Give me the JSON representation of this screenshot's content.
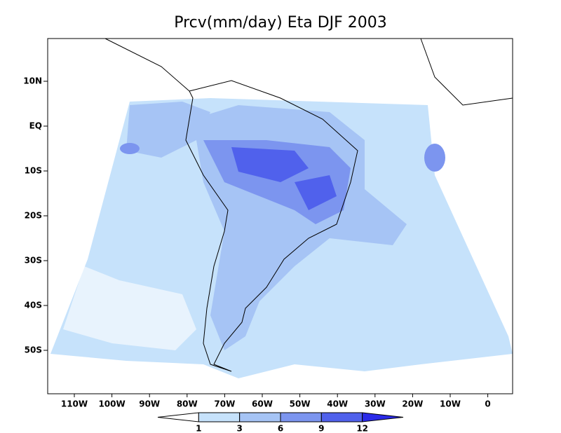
{
  "title": "Prcv(mm/day) Eta DJF 2003",
  "lat_labels": [
    "10N",
    "EQ",
    "10S",
    "20S",
    "30S",
    "40S",
    "50S"
  ],
  "lon_labels": [
    "110W",
    "100W",
    "90W",
    "80W",
    "70W",
    "60W",
    "50W",
    "40W",
    "30W",
    "20W",
    "10W",
    "0"
  ],
  "colorbar": {
    "levels": [
      1,
      3,
      6,
      9,
      12
    ],
    "colors": [
      "#ffffff",
      "#c6e2fb",
      "#a6c4f5",
      "#7c95ef",
      "#5061ec",
      "#2a2ae8"
    ]
  }
}
